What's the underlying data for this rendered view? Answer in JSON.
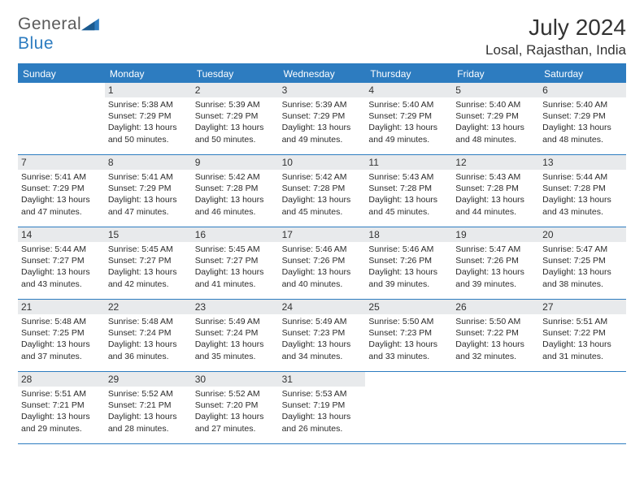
{
  "logo": {
    "part1": "General",
    "part2": "Blue"
  },
  "title": "July 2024",
  "location": "Losal, Rajasthan, India",
  "colors": {
    "accent": "#2d7cc0",
    "day_header_bg": "#e8eaec",
    "text": "#2b2b2b",
    "background": "#ffffff"
  },
  "weekdays": [
    "Sunday",
    "Monday",
    "Tuesday",
    "Wednesday",
    "Thursday",
    "Friday",
    "Saturday"
  ],
  "weeks": [
    [
      null,
      {
        "n": "1",
        "sunrise": "Sunrise: 5:38 AM",
        "sunset": "Sunset: 7:29 PM",
        "daylight1": "Daylight: 13 hours",
        "daylight2": "and 50 minutes."
      },
      {
        "n": "2",
        "sunrise": "Sunrise: 5:39 AM",
        "sunset": "Sunset: 7:29 PM",
        "daylight1": "Daylight: 13 hours",
        "daylight2": "and 50 minutes."
      },
      {
        "n": "3",
        "sunrise": "Sunrise: 5:39 AM",
        "sunset": "Sunset: 7:29 PM",
        "daylight1": "Daylight: 13 hours",
        "daylight2": "and 49 minutes."
      },
      {
        "n": "4",
        "sunrise": "Sunrise: 5:40 AM",
        "sunset": "Sunset: 7:29 PM",
        "daylight1": "Daylight: 13 hours",
        "daylight2": "and 49 minutes."
      },
      {
        "n": "5",
        "sunrise": "Sunrise: 5:40 AM",
        "sunset": "Sunset: 7:29 PM",
        "daylight1": "Daylight: 13 hours",
        "daylight2": "and 48 minutes."
      },
      {
        "n": "6",
        "sunrise": "Sunrise: 5:40 AM",
        "sunset": "Sunset: 7:29 PM",
        "daylight1": "Daylight: 13 hours",
        "daylight2": "and 48 minutes."
      }
    ],
    [
      {
        "n": "7",
        "sunrise": "Sunrise: 5:41 AM",
        "sunset": "Sunset: 7:29 PM",
        "daylight1": "Daylight: 13 hours",
        "daylight2": "and 47 minutes."
      },
      {
        "n": "8",
        "sunrise": "Sunrise: 5:41 AM",
        "sunset": "Sunset: 7:29 PM",
        "daylight1": "Daylight: 13 hours",
        "daylight2": "and 47 minutes."
      },
      {
        "n": "9",
        "sunrise": "Sunrise: 5:42 AM",
        "sunset": "Sunset: 7:28 PM",
        "daylight1": "Daylight: 13 hours",
        "daylight2": "and 46 minutes."
      },
      {
        "n": "10",
        "sunrise": "Sunrise: 5:42 AM",
        "sunset": "Sunset: 7:28 PM",
        "daylight1": "Daylight: 13 hours",
        "daylight2": "and 45 minutes."
      },
      {
        "n": "11",
        "sunrise": "Sunrise: 5:43 AM",
        "sunset": "Sunset: 7:28 PM",
        "daylight1": "Daylight: 13 hours",
        "daylight2": "and 45 minutes."
      },
      {
        "n": "12",
        "sunrise": "Sunrise: 5:43 AM",
        "sunset": "Sunset: 7:28 PM",
        "daylight1": "Daylight: 13 hours",
        "daylight2": "and 44 minutes."
      },
      {
        "n": "13",
        "sunrise": "Sunrise: 5:44 AM",
        "sunset": "Sunset: 7:28 PM",
        "daylight1": "Daylight: 13 hours",
        "daylight2": "and 43 minutes."
      }
    ],
    [
      {
        "n": "14",
        "sunrise": "Sunrise: 5:44 AM",
        "sunset": "Sunset: 7:27 PM",
        "daylight1": "Daylight: 13 hours",
        "daylight2": "and 43 minutes."
      },
      {
        "n": "15",
        "sunrise": "Sunrise: 5:45 AM",
        "sunset": "Sunset: 7:27 PM",
        "daylight1": "Daylight: 13 hours",
        "daylight2": "and 42 minutes."
      },
      {
        "n": "16",
        "sunrise": "Sunrise: 5:45 AM",
        "sunset": "Sunset: 7:27 PM",
        "daylight1": "Daylight: 13 hours",
        "daylight2": "and 41 minutes."
      },
      {
        "n": "17",
        "sunrise": "Sunrise: 5:46 AM",
        "sunset": "Sunset: 7:26 PM",
        "daylight1": "Daylight: 13 hours",
        "daylight2": "and 40 minutes."
      },
      {
        "n": "18",
        "sunrise": "Sunrise: 5:46 AM",
        "sunset": "Sunset: 7:26 PM",
        "daylight1": "Daylight: 13 hours",
        "daylight2": "and 39 minutes."
      },
      {
        "n": "19",
        "sunrise": "Sunrise: 5:47 AM",
        "sunset": "Sunset: 7:26 PM",
        "daylight1": "Daylight: 13 hours",
        "daylight2": "and 39 minutes."
      },
      {
        "n": "20",
        "sunrise": "Sunrise: 5:47 AM",
        "sunset": "Sunset: 7:25 PM",
        "daylight1": "Daylight: 13 hours",
        "daylight2": "and 38 minutes."
      }
    ],
    [
      {
        "n": "21",
        "sunrise": "Sunrise: 5:48 AM",
        "sunset": "Sunset: 7:25 PM",
        "daylight1": "Daylight: 13 hours",
        "daylight2": "and 37 minutes."
      },
      {
        "n": "22",
        "sunrise": "Sunrise: 5:48 AM",
        "sunset": "Sunset: 7:24 PM",
        "daylight1": "Daylight: 13 hours",
        "daylight2": "and 36 minutes."
      },
      {
        "n": "23",
        "sunrise": "Sunrise: 5:49 AM",
        "sunset": "Sunset: 7:24 PM",
        "daylight1": "Daylight: 13 hours",
        "daylight2": "and 35 minutes."
      },
      {
        "n": "24",
        "sunrise": "Sunrise: 5:49 AM",
        "sunset": "Sunset: 7:23 PM",
        "daylight1": "Daylight: 13 hours",
        "daylight2": "and 34 minutes."
      },
      {
        "n": "25",
        "sunrise": "Sunrise: 5:50 AM",
        "sunset": "Sunset: 7:23 PM",
        "daylight1": "Daylight: 13 hours",
        "daylight2": "and 33 minutes."
      },
      {
        "n": "26",
        "sunrise": "Sunrise: 5:50 AM",
        "sunset": "Sunset: 7:22 PM",
        "daylight1": "Daylight: 13 hours",
        "daylight2": "and 32 minutes."
      },
      {
        "n": "27",
        "sunrise": "Sunrise: 5:51 AM",
        "sunset": "Sunset: 7:22 PM",
        "daylight1": "Daylight: 13 hours",
        "daylight2": "and 31 minutes."
      }
    ],
    [
      {
        "n": "28",
        "sunrise": "Sunrise: 5:51 AM",
        "sunset": "Sunset: 7:21 PM",
        "daylight1": "Daylight: 13 hours",
        "daylight2": "and 29 minutes."
      },
      {
        "n": "29",
        "sunrise": "Sunrise: 5:52 AM",
        "sunset": "Sunset: 7:21 PM",
        "daylight1": "Daylight: 13 hours",
        "daylight2": "and 28 minutes."
      },
      {
        "n": "30",
        "sunrise": "Sunrise: 5:52 AM",
        "sunset": "Sunset: 7:20 PM",
        "daylight1": "Daylight: 13 hours",
        "daylight2": "and 27 minutes."
      },
      {
        "n": "31",
        "sunrise": "Sunrise: 5:53 AM",
        "sunset": "Sunset: 7:19 PM",
        "daylight1": "Daylight: 13 hours",
        "daylight2": "and 26 minutes."
      },
      null,
      null,
      null
    ]
  ]
}
